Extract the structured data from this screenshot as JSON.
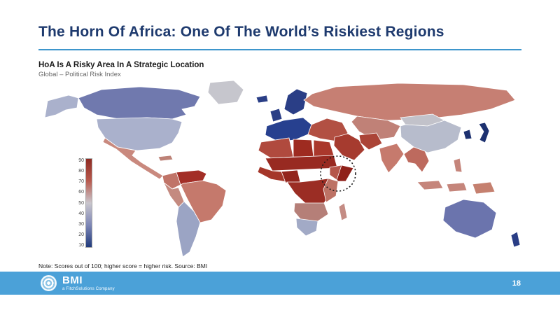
{
  "slide": {
    "title": "The Horn Of Africa: One Of The World’s Riskiest Regions",
    "subtitle": "HoA Is A Risky Area In A Strategic Location",
    "index_label": "Global – Political Risk Index",
    "note": "Note: Scores out of 100; higher score = higher risk. Source: BMI",
    "page_number": "18"
  },
  "footer": {
    "brand": "BMI",
    "brand_sub": "a FitchSolutions Company",
    "bar_color": "#4BA1D8"
  },
  "colors": {
    "title": "#1E3A6E",
    "accent_line": "#3E96CC"
  },
  "legend": {
    "ticks": [
      "90",
      "80",
      "70",
      "60",
      "50",
      "40",
      "30",
      "20",
      "10"
    ],
    "gradient": [
      "#8E2A22",
      "#B85A4E",
      "#C9C6CD",
      "#7D86B6",
      "#203A7C"
    ]
  },
  "map": {
    "type": "choropleth",
    "regions": {
      "alaska": "#AAB1CC",
      "canada": "#7079AE",
      "greenland": "#C6C6CD",
      "usa": "#AAB1CC",
      "mexico-central-america": "#C9897E",
      "caribbean": "#BD8277",
      "colombia": "#C07468",
      "venezuela": "#A32E26",
      "peru": "#C48A80",
      "brazil": "#C5796C",
      "argentina-chile": "#9BA4C4",
      "iceland": "#2A3E86",
      "uk-ireland": "#2A3E86",
      "scandinavia": "#2A3E86",
      "western-europe": "#27408F",
      "eastern-europe-turkey": "#B25043",
      "russia": "#C67F73",
      "central-asia": "#C08177",
      "mongolia": "#C2C2CA",
      "china": "#B7BCCC",
      "korea": "#1D3170",
      "japan": "#1D3170",
      "india": "#C67A6D",
      "southeast-asia": "#BD6A5E",
      "philippines": "#C5857B",
      "indonesia": "#C5857B",
      "new-guinea": "#C5806F",
      "middle-east": "#A63B2F",
      "iran": "#AB4437",
      "north-africa-west": "#B04A3E",
      "libya": "#9E2B20",
      "egypt": "#AA382C",
      "sahel-sudan": "#982A21",
      "west-africa": "#A53629",
      "nigeria": "#93241C",
      "central-africa": "#9B2D24",
      "east-africa": "#BD7265",
      "ethiopia": "#B5564A",
      "somalia": "#8F2019",
      "southern-africa": "#B57F78",
      "south-africa": "#A2AAC6",
      "madagascar": "#C48C84",
      "australia": "#6B74AD",
      "new-zealand": "#2A3E86"
    }
  }
}
